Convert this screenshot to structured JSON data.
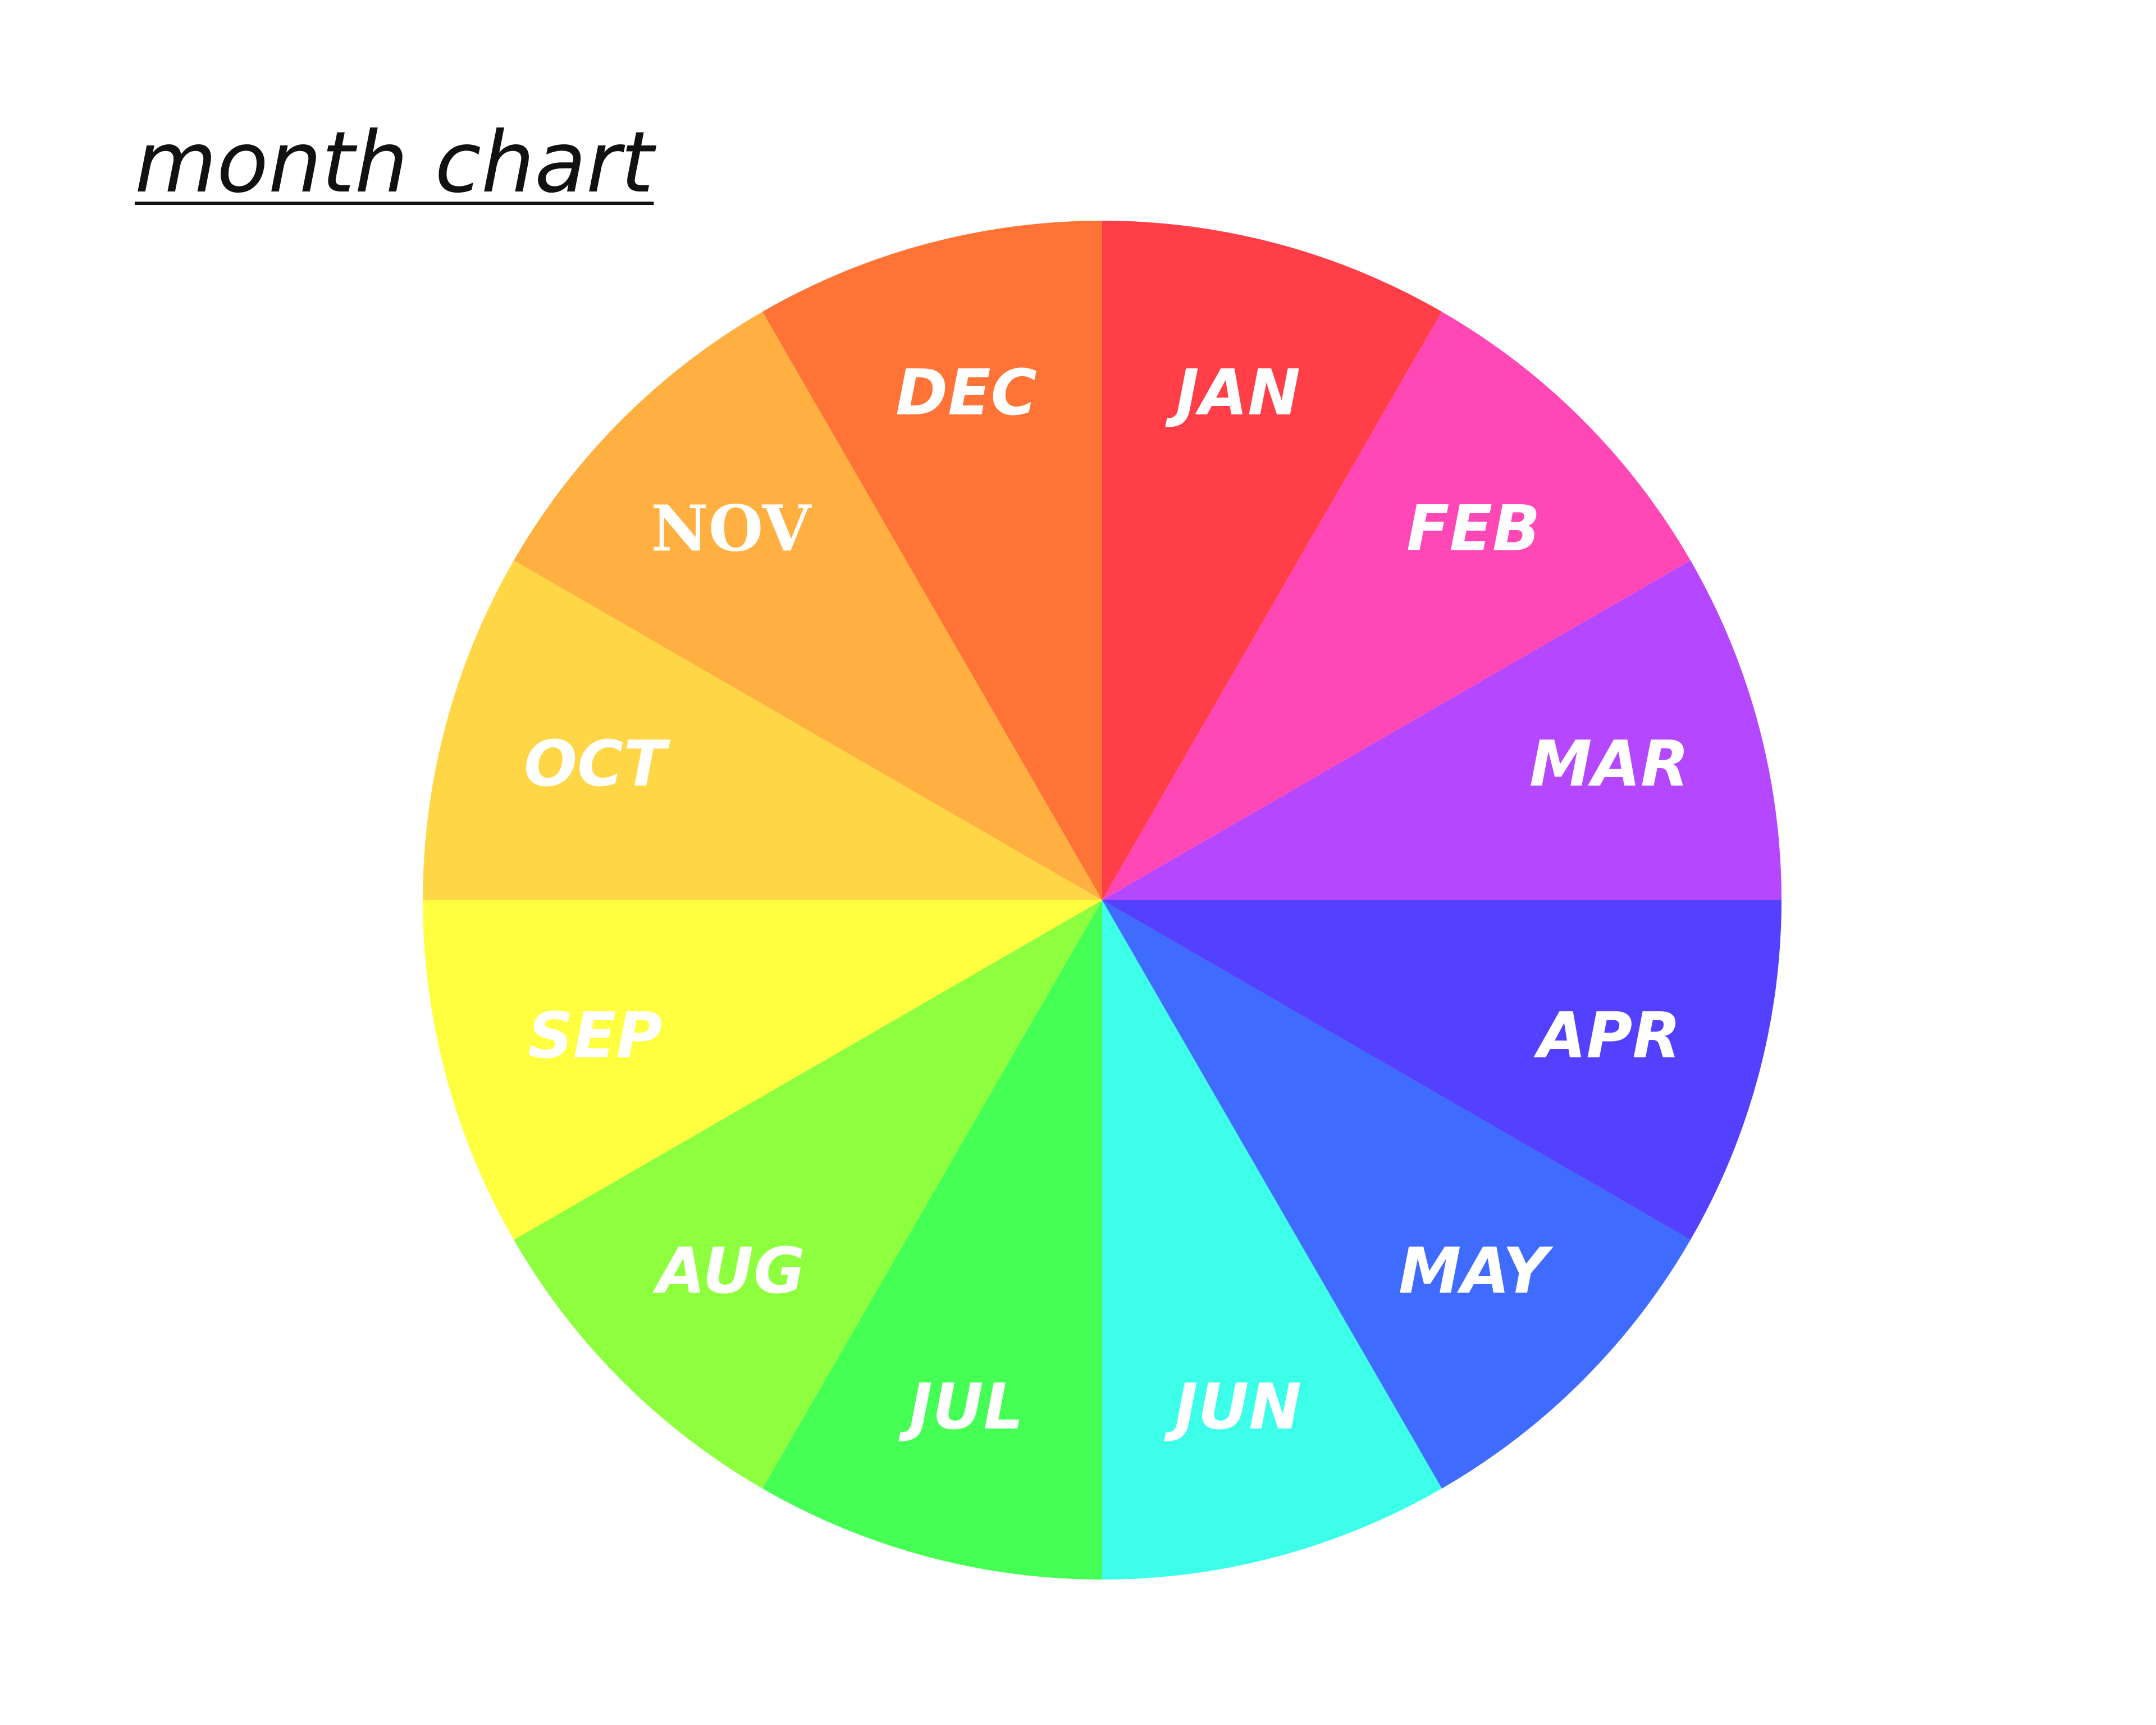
{
  "chart_data": {
    "type": "pie",
    "title": "month chart",
    "slices": [
      {
        "label": "JAN",
        "value": 1,
        "color": "#ff3e48"
      },
      {
        "label": "FEB",
        "value": 1,
        "color": "#ff47b6"
      },
      {
        "label": "MAR",
        "value": 1,
        "color": "#b548ff"
      },
      {
        "label": "APR",
        "value": 1,
        "color": "#5341ff"
      },
      {
        "label": "MAY",
        "value": 1,
        "color": "#3f6bff"
      },
      {
        "label": "JUN",
        "value": 1,
        "color": "#3dffe9"
      },
      {
        "label": "JUL",
        "value": 1,
        "color": "#45ff55"
      },
      {
        "label": "AUG",
        "value": 1,
        "color": "#8eff3f"
      },
      {
        "label": "SEP",
        "value": 1,
        "color": "#ffff40"
      },
      {
        "label": "OCT",
        "value": 1,
        "color": "#ffd645"
      },
      {
        "label": "NOV",
        "value": 1,
        "color": "#ffb040"
      },
      {
        "label": "DEC",
        "value": 1,
        "color": "#ff7336"
      }
    ],
    "start": "12 o'clock",
    "direction": "clockwise",
    "label_color": "#ffffff"
  }
}
